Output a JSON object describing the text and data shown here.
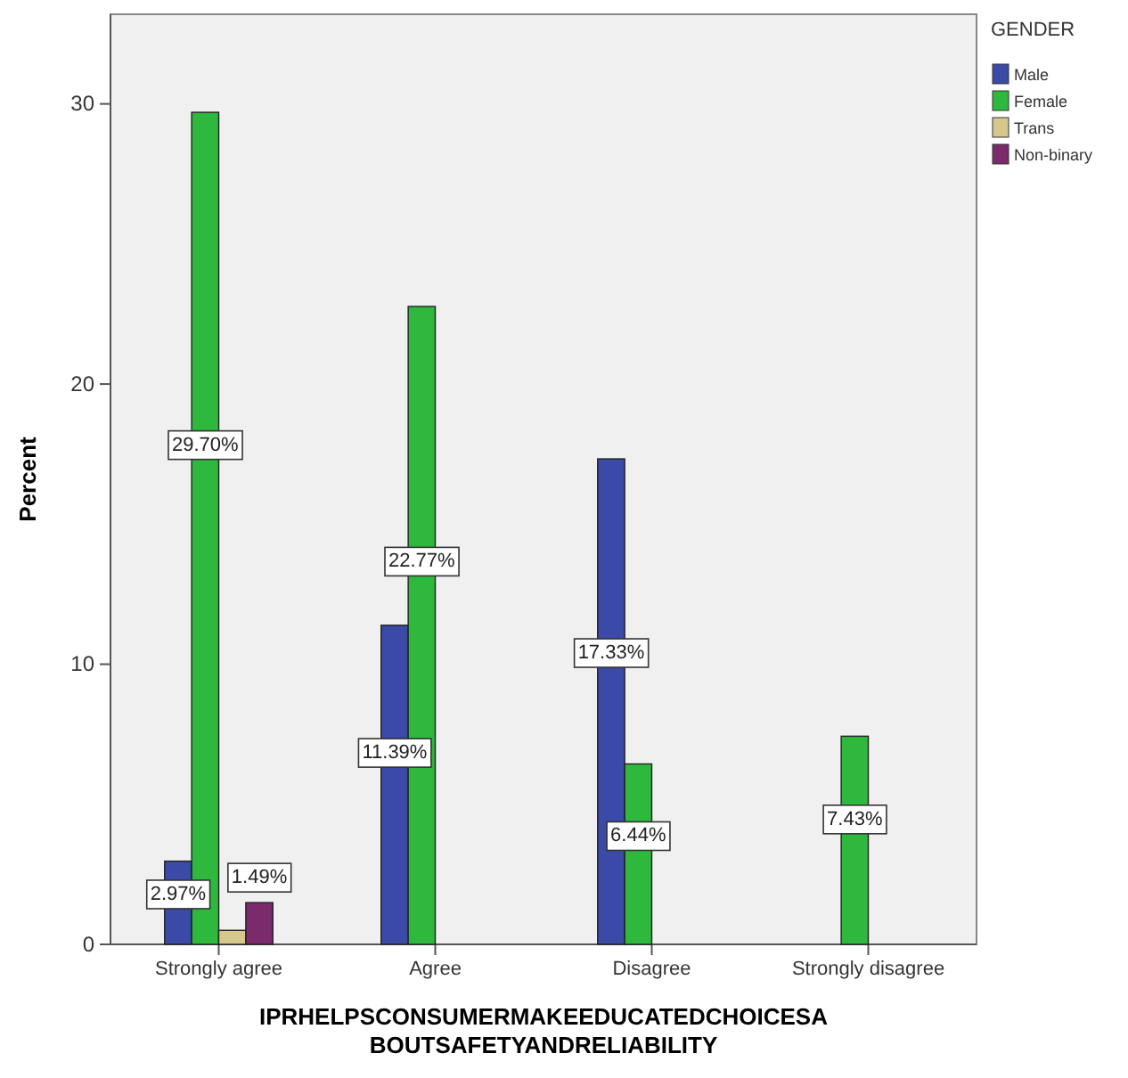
{
  "chart_data": {
    "type": "bar",
    "categories": [
      "Strongly agree",
      "Agree",
      "Disagree",
      "Strongly disagree"
    ],
    "series": [
      {
        "name": "Male",
        "color": "#3a4aa6",
        "values": [
          2.97,
          11.39,
          17.33,
          null
        ],
        "value_labels": [
          "2.97%",
          "11.39%",
          "17.33%",
          null
        ]
      },
      {
        "name": "Female",
        "color": "#2eb83e",
        "values": [
          29.7,
          22.77,
          6.44,
          7.43
        ],
        "value_labels": [
          "29.70%",
          "22.77%",
          "6.44%",
          "7.43%"
        ]
      },
      {
        "name": "Trans",
        "color": "#d6c88c",
        "values": [
          0.5,
          null,
          null,
          null
        ],
        "value_labels": [
          null,
          null,
          null,
          null
        ]
      },
      {
        "name": "Non-binary",
        "color": "#7b2a6b",
        "values": [
          1.49,
          null,
          null,
          null
        ],
        "value_labels": [
          "1.49%",
          null,
          null,
          null
        ]
      }
    ],
    "ylabel": "Percent",
    "xlabel": "IPRHELPSCONSUMERMAKEEDUCATEDCHOICESABOUTSAFETYANDRELIABILITY",
    "legend_title": "GENDER",
    "legend": "right",
    "ylim": [
      0,
      33.2
    ],
    "yticks": [
      0,
      10,
      20,
      30
    ],
    "grid": false
  }
}
